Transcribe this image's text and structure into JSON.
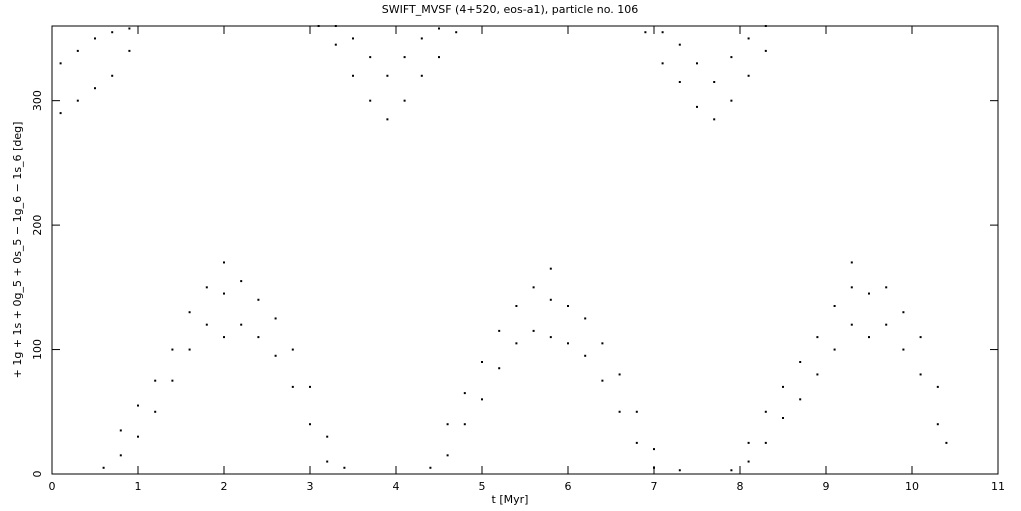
{
  "chart_data": {
    "type": "scatter",
    "title": "SWIFT_MVSF (4+520, eos-a1), particle no. 106",
    "x_label": "t [Myr]",
    "y_label": "+ 1g + 1s + 0g_5 + 0s_5 − 1g_6 − 1s_6 [deg]",
    "color": "#000000",
    "xlim": [
      0,
      11
    ],
    "ylim": [
      0,
      360
    ],
    "xticks": [
      0,
      1,
      2,
      3,
      4,
      5,
      6,
      7,
      8,
      9,
      10,
      11
    ],
    "yticks": [
      0,
      100,
      200,
      300
    ],
    "x": [
      0.1,
      0.1,
      0.3,
      0.3,
      0.5,
      0.5,
      0.7,
      0.7,
      0.9,
      0.9,
      0.6,
      0.8,
      0.8,
      1.0,
      1.0,
      1.2,
      1.2,
      1.4,
      1.4,
      1.6,
      1.6,
      1.8,
      1.8,
      2.0,
      2.0,
      2.0,
      2.2,
      2.2,
      2.4,
      2.4,
      2.6,
      2.6,
      2.8,
      2.8,
      3.0,
      3.0,
      3.2,
      3.2,
      3.4,
      3.1,
      3.3,
      3.3,
      3.5,
      3.5,
      3.7,
      3.7,
      3.9,
      3.9,
      4.1,
      4.1,
      4.3,
      4.3,
      4.5,
      4.5,
      4.7,
      4.4,
      4.6,
      4.6,
      4.8,
      4.8,
      5.0,
      5.0,
      5.2,
      5.2,
      5.4,
      5.4,
      5.6,
      5.6,
      5.8,
      5.8,
      5.8,
      6.0,
      6.0,
      6.2,
      6.2,
      6.4,
      6.4,
      6.6,
      6.6,
      6.8,
      6.8,
      7.0,
      7.0,
      7.3,
      6.9,
      7.1,
      7.1,
      7.3,
      7.3,
      7.5,
      7.5,
      7.7,
      7.7,
      7.9,
      7.9,
      8.1,
      8.1,
      8.3,
      8.3,
      7.9,
      8.1,
      8.1,
      8.3,
      8.3,
      8.5,
      8.5,
      8.7,
      8.7,
      8.9,
      8.9,
      9.1,
      9.1,
      9.3,
      9.3,
      9.3,
      9.5,
      9.5,
      9.7,
      9.7,
      9.9,
      9.9,
      10.1,
      10.1,
      10.3,
      10.3,
      10.4
    ],
    "values": [
      290,
      330,
      300,
      340,
      310,
      350,
      320,
      355,
      340,
      358,
      5,
      15,
      35,
      30,
      55,
      50,
      75,
      75,
      100,
      100,
      130,
      120,
      150,
      110,
      145,
      170,
      120,
      155,
      110,
      140,
      95,
      125,
      70,
      100,
      40,
      70,
      10,
      30,
      5,
      360,
      345,
      360,
      320,
      350,
      300,
      335,
      285,
      320,
      300,
      335,
      320,
      350,
      335,
      358,
      355,
      5,
      15,
      40,
      40,
      65,
      60,
      90,
      85,
      115,
      105,
      135,
      115,
      150,
      110,
      140,
      165,
      105,
      135,
      95,
      125,
      75,
      105,
      50,
      80,
      25,
      50,
      5,
      20,
      3,
      355,
      330,
      355,
      315,
      345,
      295,
      330,
      285,
      315,
      300,
      335,
      320,
      350,
      340,
      360,
      3,
      10,
      25,
      25,
      50,
      45,
      70,
      60,
      90,
      80,
      110,
      100,
      135,
      120,
      150,
      170,
      110,
      145,
      120,
      150,
      100,
      130,
      80,
      110,
      40,
      70,
      25
    ]
  }
}
